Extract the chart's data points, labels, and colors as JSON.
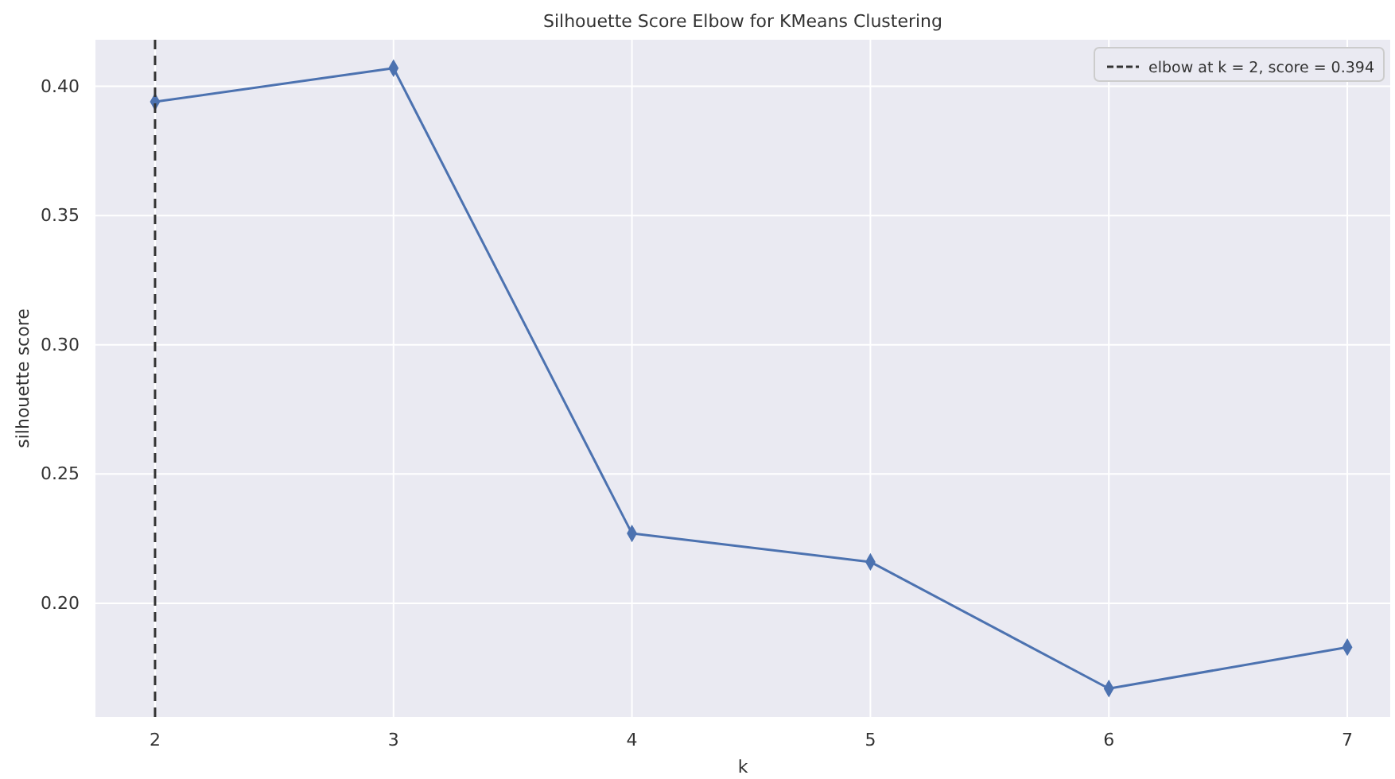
{
  "chart_data": {
    "type": "line",
    "title": "Silhouette Score Elbow for KMeans Clustering",
    "xlabel": "k",
    "ylabel": "silhouette score",
    "x": [
      2,
      3,
      4,
      5,
      6,
      7
    ],
    "series": [
      {
        "color": "#4c72b0",
        "values": [
          0.394,
          0.407,
          0.227,
          0.216,
          0.167,
          0.183
        ]
      }
    ],
    "xlim": [
      1.75,
      7.18
    ],
    "xticks": [
      2,
      3,
      4,
      5,
      6,
      7
    ],
    "ylim": [
      0.156,
      0.418
    ],
    "yticks": [
      {
        "value": 0.2,
        "label": "0.20"
      },
      {
        "value": 0.25,
        "label": "0.25"
      },
      {
        "value": 0.3,
        "label": "0.30"
      },
      {
        "value": 0.35,
        "label": "0.35"
      },
      {
        "value": 0.4,
        "label": "0.40"
      }
    ],
    "ref_lines": [
      {
        "axis": "x",
        "value": 2,
        "label": "elbow at k = 2, score = 0.394",
        "color": "#333333",
        "line_style": "dashed"
      }
    ],
    "grid": true,
    "legend": "top right",
    "marker": "diamond",
    "line_style": "solid"
  }
}
